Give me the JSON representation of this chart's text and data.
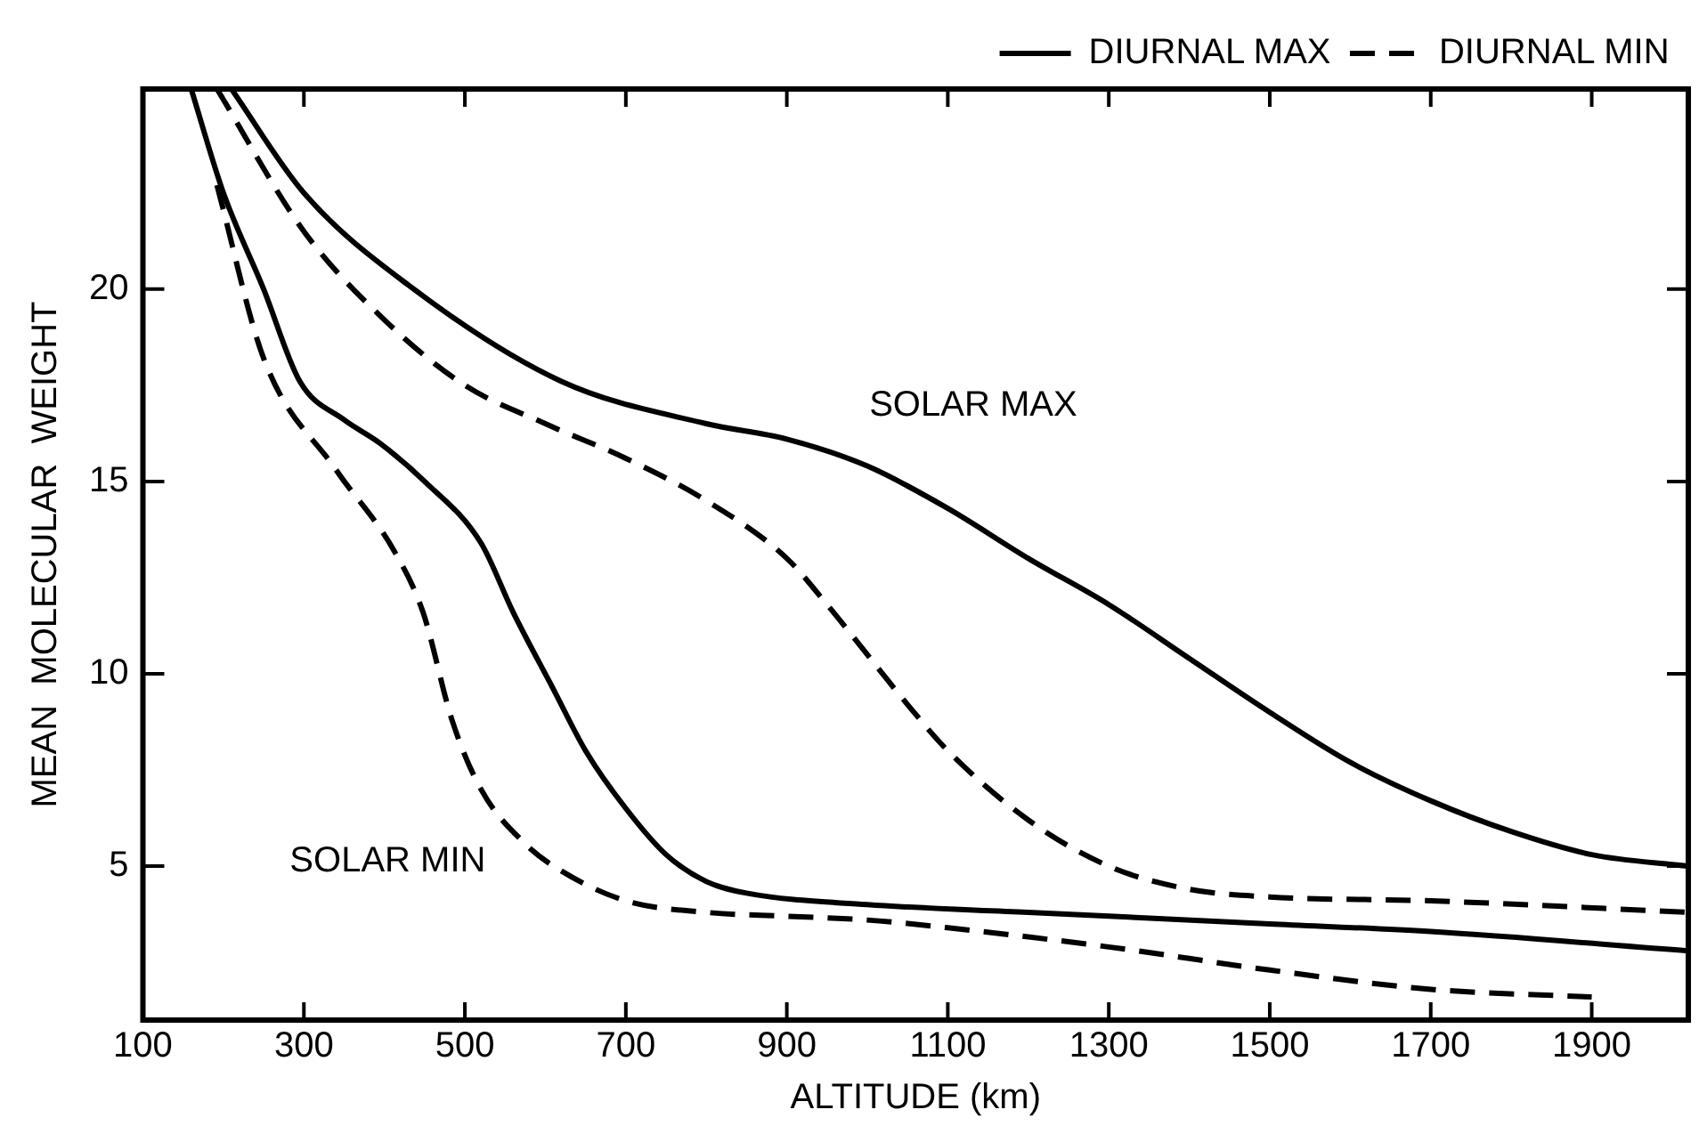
{
  "chart_data": {
    "type": "line",
    "xlabel": "ALTITUDE (km)",
    "ylabel": "MEAN  MOLECULAR  WEIGHT",
    "xlim": [
      100,
      2020
    ],
    "ylim": [
      1,
      25.2
    ],
    "xticks": [
      100,
      300,
      500,
      700,
      900,
      1100,
      1300,
      1500,
      1700,
      1900
    ],
    "yticks": [
      5,
      10,
      15,
      20
    ],
    "grid": false,
    "legend": "top right",
    "marker": "none",
    "annotations": [
      "SOLAR MAX",
      "SOLAR MIN"
    ],
    "series": [
      {
        "name": "DIURNAL MAX",
        "color": "#000000",
        "line_style": "solid",
        "x": [
          210,
          300,
          430,
          620,
          800,
          900,
          1000,
          1100,
          1200,
          1300,
          1400,
          1500,
          1600,
          1700,
          1800,
          1900,
          2020
        ],
        "values": [
          25.2,
          22.5,
          20.1,
          17.6,
          16.5,
          16.1,
          15.4,
          14.3,
          13,
          11.8,
          10.4,
          9,
          7.7,
          6.7,
          5.9,
          5.3,
          5
        ]
      },
      {
        "name": "DIURNAL MIN",
        "color": "#000000",
        "line_style": "dashed",
        "x": [
          192,
          300,
          400,
          500,
          600,
          700,
          800,
          900,
          950,
          1000,
          1050,
          1100,
          1200,
          1300,
          1400,
          1500,
          1700,
          2020
        ],
        "values": [
          25.2,
          21.5,
          19.2,
          17.5,
          16.5,
          15.6,
          14.5,
          13,
          11.8,
          10.5,
          9.2,
          8,
          6.2,
          5,
          4.4,
          4.2,
          4.1,
          3.8
        ]
      },
      {
        "color": "#000000",
        "line_style": "solid",
        "x": [
          160,
          200,
          250,
          295,
          350,
          394,
          450,
          520,
          560,
          610,
          650,
          700,
          750,
          800,
          850,
          1000,
          1200,
          1500,
          1700,
          2020
        ],
        "values": [
          25.2,
          22.5,
          20,
          17.6,
          16.6,
          16,
          15,
          13.4,
          11.6,
          9.6,
          8,
          6.5,
          5.3,
          4.6,
          4.3,
          4,
          3.8,
          3.5,
          3.3,
          2.8
        ]
      },
      {
        "color": "#000000",
        "line_style": "dashed",
        "x": [
          192,
          250,
          340,
          412,
          448,
          484,
          520,
          574,
          618,
          700,
          800,
          900,
          1000,
          1100,
          1300,
          1500,
          1700,
          1900
        ],
        "values": [
          22.7,
          18.2,
          15.3,
          13.2,
          11.6,
          8.8,
          7,
          5.6,
          4.9,
          4.1,
          3.8,
          3.7,
          3.6,
          3.4,
          2.9,
          2.3,
          1.8,
          1.6
        ]
      }
    ]
  }
}
